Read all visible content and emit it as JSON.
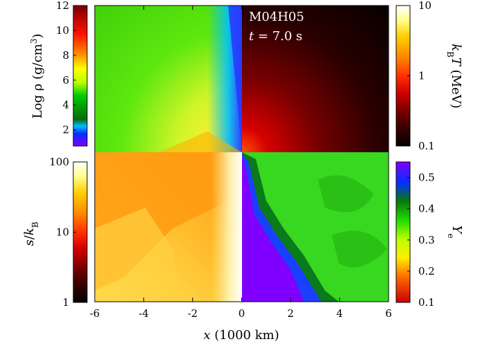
{
  "figure": {
    "model": "M04H05",
    "time": {
      "symbol": "t",
      "equals": " = ",
      "value": "7.0 s"
    }
  },
  "xaxis": {
    "var": "x",
    "unit": " (1000 km)",
    "ticks": [
      "-6",
      "-4",
      "-2",
      "0",
      "2",
      "4",
      "6"
    ],
    "range": [
      -6,
      6
    ]
  },
  "colorbars": {
    "density": {
      "label_prefix": "Log ",
      "label_sym": "ρ",
      "label_unit": " (g/cm",
      "label_sup": "3",
      "label_close": ")",
      "ticks": [
        "2",
        "4",
        "6",
        "8",
        "10",
        "12"
      ],
      "range": [
        0.7,
        12
      ],
      "scale": "linear",
      "colormap": [
        "#8000ff",
        "#0030ff",
        "#00c0ff",
        "#0a7a0a",
        "#00cc00",
        "#c8ff00",
        "#ffff00",
        "#ff8000",
        "#ff0000",
        "#8b0000"
      ]
    },
    "temperature": {
      "label_k": "k",
      "label_ksub": "B",
      "label_T": "T",
      "label_unit": " (MeV)",
      "ticks": [
        "10",
        "1",
        "0.1"
      ],
      "range": [
        0.1,
        10
      ],
      "scale": "log",
      "colormap": [
        "#000000",
        "#5a0000",
        "#c00000",
        "#ff2000",
        "#ff8000",
        "#ffd000",
        "#ffff80",
        "#ffffff"
      ]
    },
    "entropy": {
      "label_s": "s",
      "label_slash": "/",
      "label_k": "k",
      "label_ksub": "B",
      "ticks": [
        "100",
        "10",
        "1"
      ],
      "range": [
        1,
        100
      ],
      "scale": "log",
      "colormap": [
        "#000000",
        "#5a0000",
        "#c00000",
        "#ff2000",
        "#ff8000",
        "#ffd000",
        "#ffff80",
        "#ffffff"
      ]
    },
    "ye": {
      "label_Y": "Y",
      "label_sub": "e",
      "ticks": [
        "0.5",
        "0.4",
        "0.3",
        "0.2",
        "0.1"
      ],
      "range": [
        0.1,
        0.55
      ],
      "scale": "linear",
      "colormap": [
        "#c80000",
        "#ff6a00",
        "#ffee00",
        "#b8ff00",
        "#22dd00",
        "#0a7a0a",
        "#0030ff",
        "#8000ff"
      ]
    }
  },
  "quadrants": {
    "top_left": "density",
    "top_right": "temperature",
    "bottom_left": "entropy",
    "bottom_right": "ye"
  }
}
